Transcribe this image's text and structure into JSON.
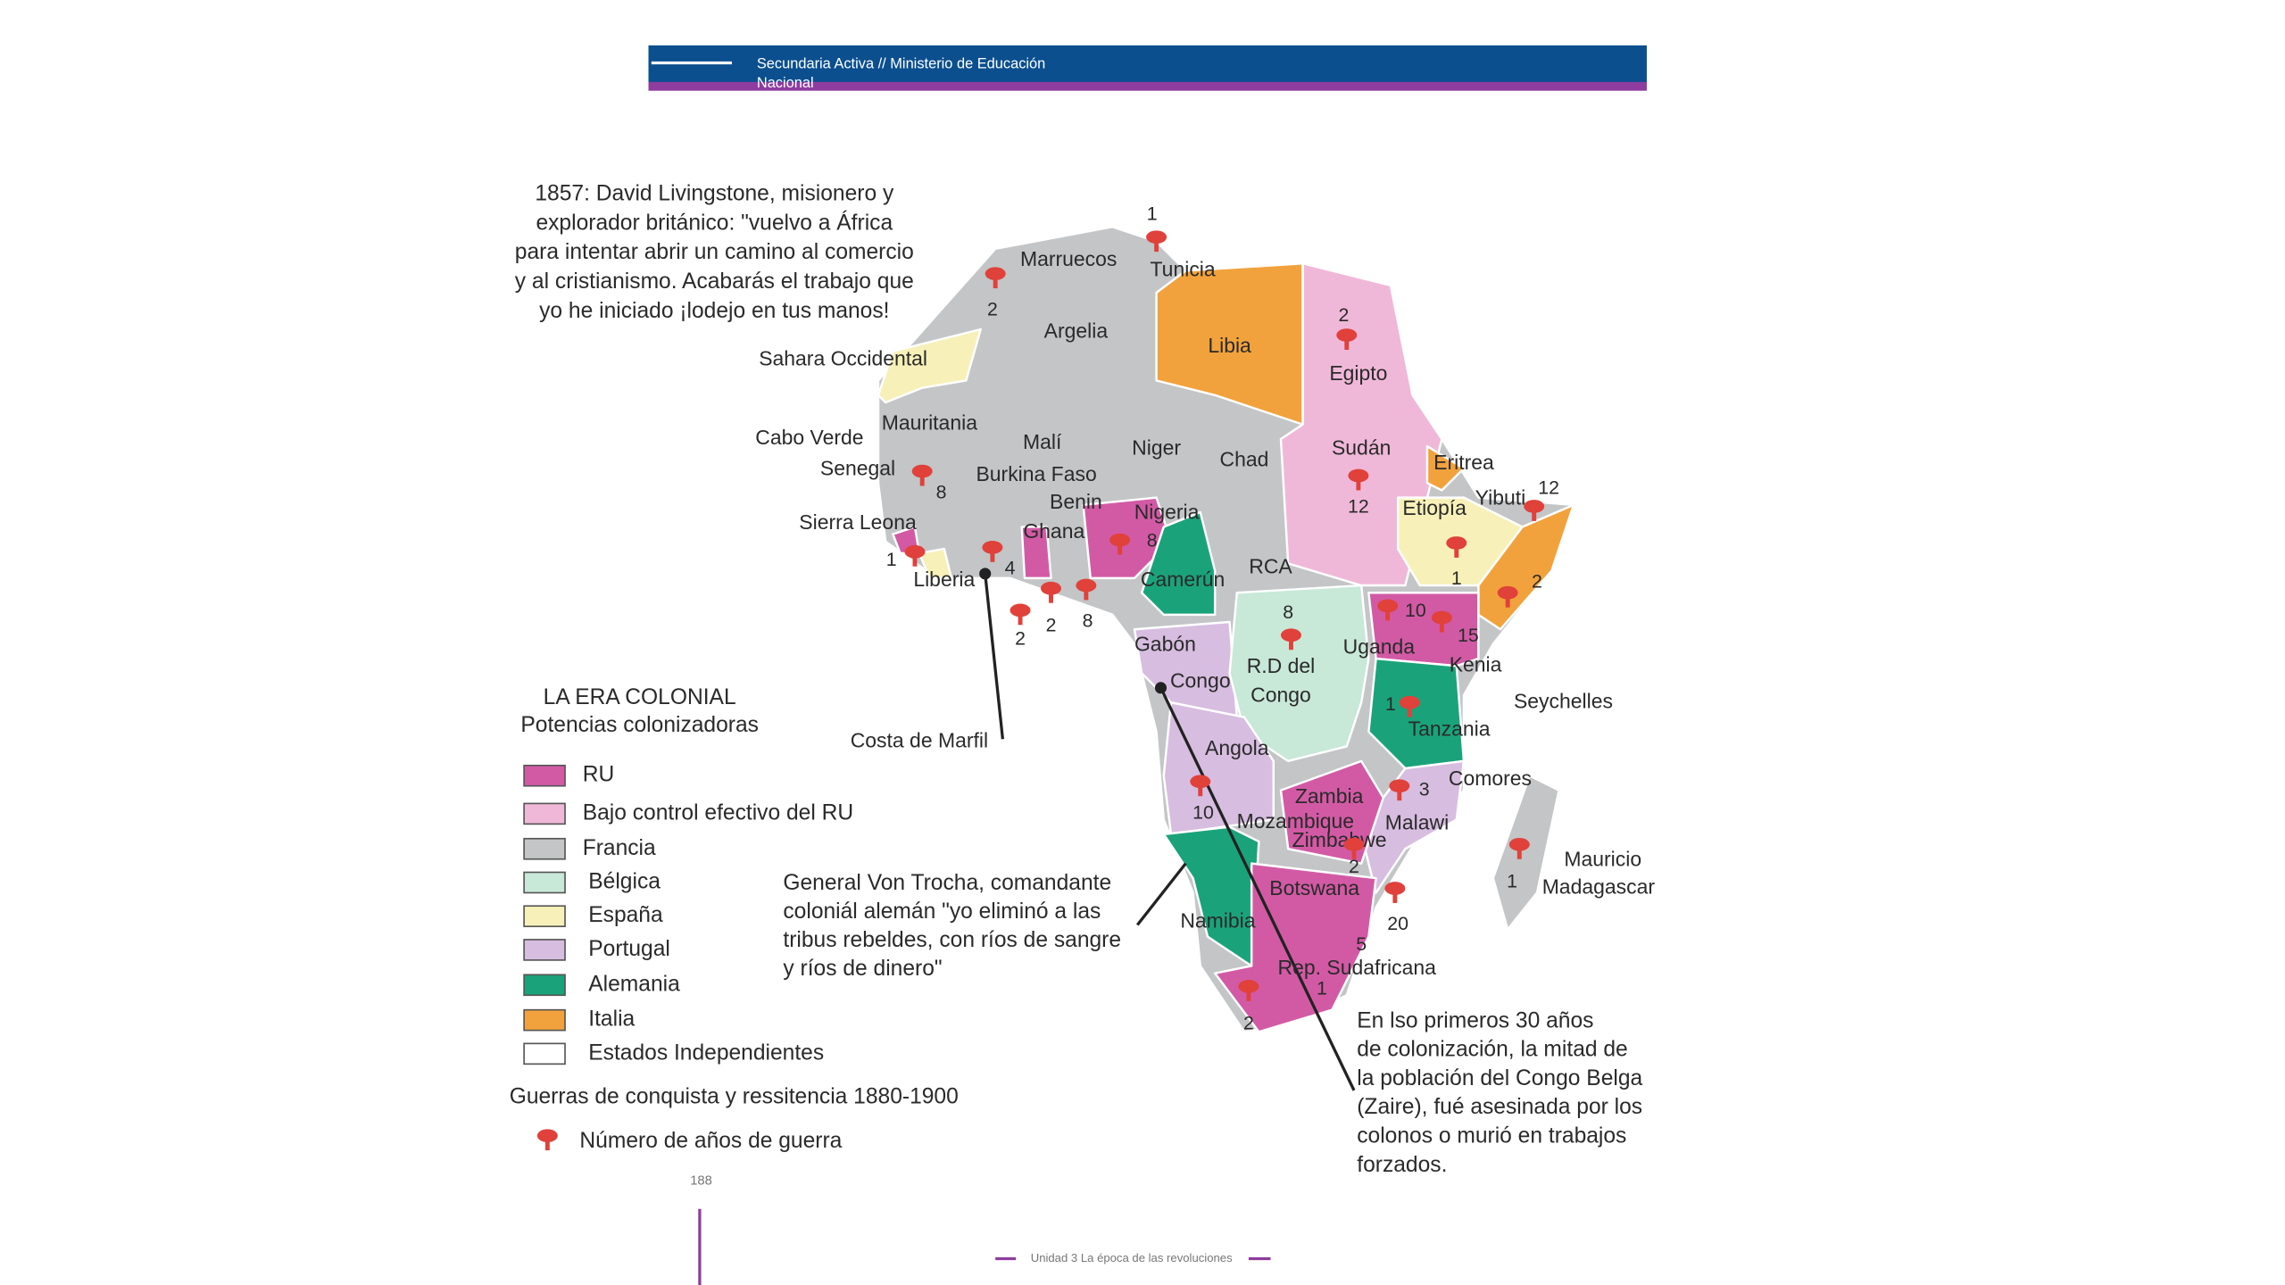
{
  "header": {
    "lines": [
      "Secundaria Activa // Ministerio de Educación",
      "Nacional"
    ]
  },
  "quote": {
    "lines": [
      "1857: David Livingstone, misionero y",
      "explorador británico: \"vuelvo a África",
      "para intentar abrir un camino al comercio",
      "y al cristianismo. Acabarás el trabajo que",
      "yo he iniciado ¡lodejo en tus manos!"
    ]
  },
  "map": {
    "labels": [
      "Marruecos",
      "Tunicia",
      "Argelia",
      "Libia",
      "Egipto",
      "Sahara Occidental",
      "Mauritania",
      "Malí",
      "Niger",
      "Chad",
      "Sudán",
      "Eritrea",
      "Cabo Verde",
      "Senegal",
      "Burkina Faso",
      "Benin",
      "Nigeria",
      "Etiopía",
      "Yibuti",
      "Sierra Leona",
      "Ghana",
      "RCA",
      "Liberia",
      "Camerún",
      "Gabón",
      "Uganda",
      "Kenia",
      "Congo",
      "R.D del",
      "Congo",
      "Seychelles",
      "Tanzania",
      "Costa de Marfil",
      "Angola",
      "Zambia",
      "Comores",
      "Mozambique",
      "Malawi",
      "Zimbabwe",
      "Mauricio",
      "Madagascar",
      "Botswana",
      "Namibia",
      "Rep. Sudafricana"
    ],
    "war_markers": [
      1,
      2,
      2,
      8,
      12,
      12,
      1,
      2,
      1,
      4,
      8,
      2,
      2,
      8,
      10,
      15,
      8,
      1,
      10,
      3,
      2,
      20,
      5,
      1,
      2,
      1
    ]
  },
  "legend": {
    "title": [
      "LA ERA COLONIAL",
      "Potencias colonizadoras"
    ],
    "items": [
      {
        "label": "RU",
        "color": "#d25aa5"
      },
      {
        "label": "Bajo control efectivo del RU",
        "color": "#f0b8d8"
      },
      {
        "label": "Francia",
        "color": "#c3c5c7"
      },
      {
        "label": "Bélgica",
        "color": "#c8e8d8"
      },
      {
        "label": "España",
        "color": "#f7f0b8"
      },
      {
        "label": "Portugal",
        "color": "#d7bde0"
      },
      {
        "label": "Alemania",
        "color": "#1aa37a"
      },
      {
        "label": "Italia",
        "color": "#f2a23c"
      },
      {
        "label": "Estados Independientes",
        "color": "#ffffff"
      }
    ],
    "wars_title": "Guerras de conquista y ressitencia 1880-1900",
    "wars_label": "Número de años de guerra"
  },
  "annotations": {
    "von_trocha": [
      "General Von Trocha, comandante",
      "coloniál alemán \"yo eliminó a las",
      "tribus rebeldes, con ríos de sangre",
      "y ríos de dinero\""
    ],
    "congo": [
      "En lso primeros 30 años",
      "de colonización, la mitad de",
      "la población del Congo Belga",
      "(Zaire), fué asesinada por los",
      "colonos o murió en trabajos",
      "forzados."
    ]
  },
  "footer": {
    "page": "188",
    "unit": "Unidad 3 La época de las revoluciones"
  }
}
